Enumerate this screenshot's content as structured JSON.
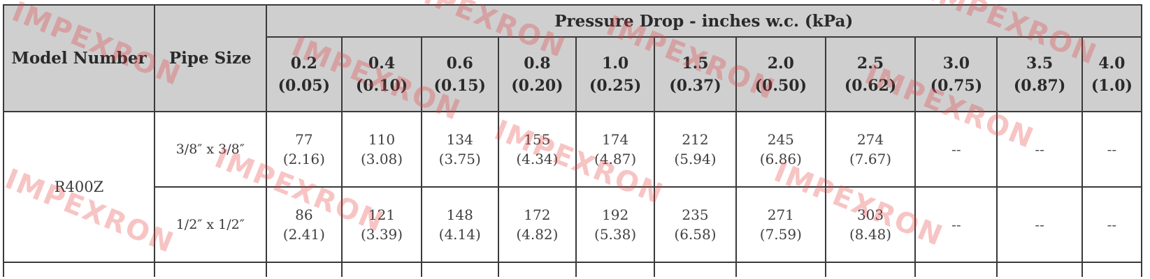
{
  "table": {
    "header_model": "Model Number",
    "header_pipe": "Pipe Size",
    "header_pressure": "Pressure Drop - inches w.c. (kPa)",
    "columns": [
      {
        "top": "0.2",
        "bottom": "(0.05)"
      },
      {
        "top": "0.4",
        "bottom": "(0.10)"
      },
      {
        "top": "0.6",
        "bottom": "(0.15)"
      },
      {
        "top": "0.8",
        "bottom": "(0.20)"
      },
      {
        "top": "1.0",
        "bottom": "(0.25)"
      },
      {
        "top": "1.5",
        "bottom": "(0.37)"
      },
      {
        "top": "2.0",
        "bottom": "(0.50)"
      },
      {
        "top": "2.5",
        "bottom": "(0.62)"
      },
      {
        "top": "3.0",
        "bottom": "(0.75)"
      },
      {
        "top": "3.5",
        "bottom": "(0.87)"
      },
      {
        "top": "4.0",
        "bottom": "(1.0)"
      }
    ],
    "model": "R400Z",
    "rows": [
      {
        "pipe": "3/8″ x 3/8″",
        "cells": [
          {
            "top": "77",
            "bottom": "(2.16)"
          },
          {
            "top": "110",
            "bottom": "(3.08)"
          },
          {
            "top": "134",
            "bottom": "(3.75)"
          },
          {
            "top": "155",
            "bottom": "(4.34)"
          },
          {
            "top": "174",
            "bottom": "(4.87)"
          },
          {
            "top": "212",
            "bottom": "(5.94)"
          },
          {
            "top": "245",
            "bottom": "(6.86)"
          },
          {
            "top": "274",
            "bottom": "(7.67)"
          },
          {
            "top": "--",
            "bottom": ""
          },
          {
            "top": "--",
            "bottom": ""
          },
          {
            "top": "--",
            "bottom": ""
          }
        ]
      },
      {
        "pipe": "1/2″ x 1/2″",
        "cells": [
          {
            "top": "86",
            "bottom": "(2.41)"
          },
          {
            "top": "121",
            "bottom": "(3.39)"
          },
          {
            "top": "148",
            "bottom": "(4.14)"
          },
          {
            "top": "172",
            "bottom": "(4.82)"
          },
          {
            "top": "192",
            "bottom": "(5.38)"
          },
          {
            "top": "235",
            "bottom": "(6.58)"
          },
          {
            "top": "271",
            "bottom": "(7.59)"
          },
          {
            "top": "303",
            "bottom": "(8.48)"
          },
          {
            "top": "--",
            "bottom": ""
          },
          {
            "top": "--",
            "bottom": ""
          },
          {
            "top": "--",
            "bottom": ""
          }
        ]
      }
    ]
  },
  "watermark": {
    "text": "IMPEXRON",
    "color": "#e63c3c"
  }
}
